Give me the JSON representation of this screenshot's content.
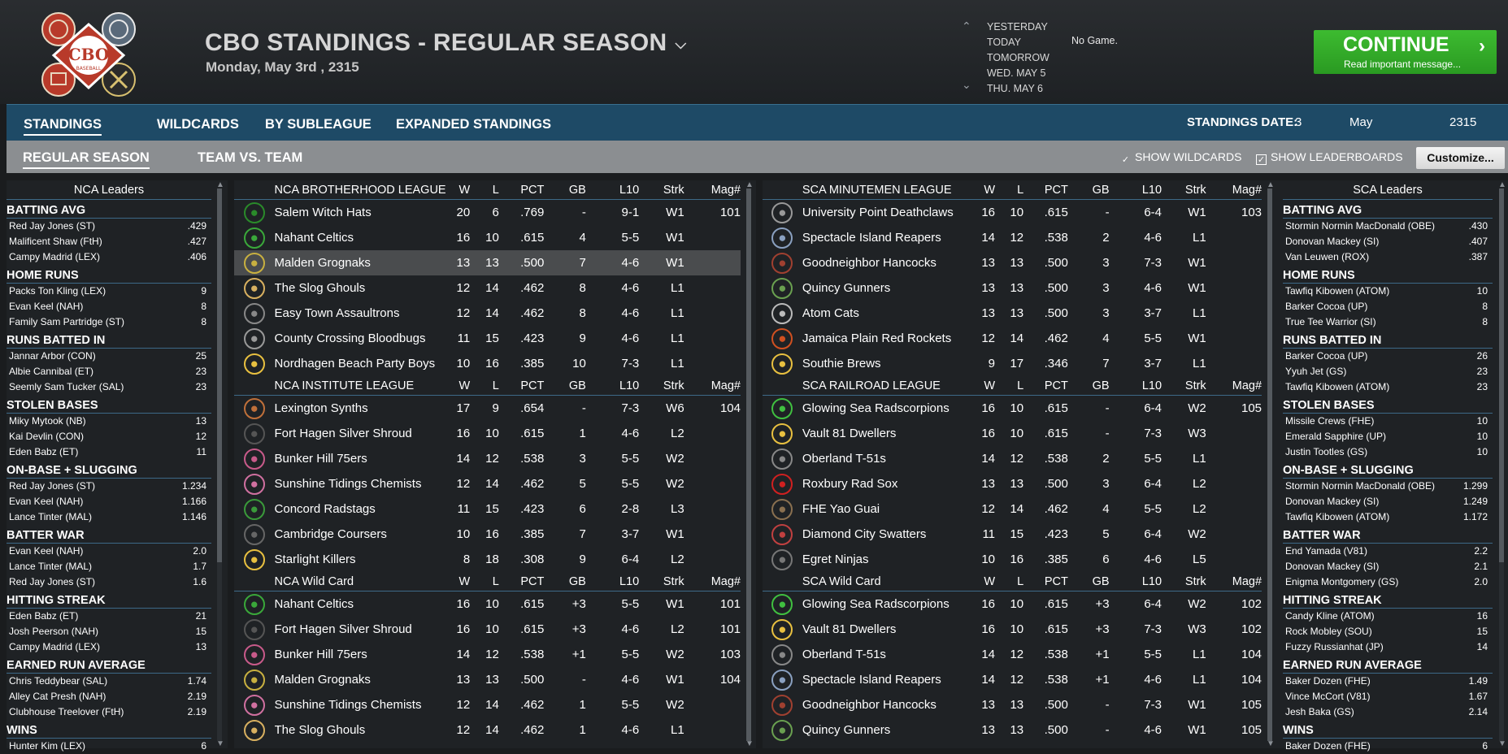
{
  "header": {
    "title": "CBO STANDINGS - REGULAR SEASON",
    "date": "Monday, May 3rd , 2315",
    "days": [
      "YESTERDAY",
      "TODAY",
      "TOMORROW",
      "WED. MAY 5",
      "THU. MAY 6"
    ],
    "no_game": "No Game.",
    "continue_label": "CONTINUE",
    "continue_sub": "Read important message..."
  },
  "logo": {
    "text": "CBO",
    "subtext": "BASEBALL"
  },
  "nav": {
    "tabs": [
      "STANDINGS",
      "WILDCARDS",
      "BY SUBLEAGUE",
      "EXPANDED STANDINGS"
    ],
    "standings_date_label": "STANDINGS DATE:",
    "standings_date": {
      "day": "3",
      "month": "May",
      "year": "2315"
    }
  },
  "subnav": {
    "tabs": [
      "REGULAR SEASON",
      "TEAM VS. TEAM"
    ],
    "show_wildcards": "SHOW WILDCARDS",
    "show_leaderboards": "SHOW LEADERBOARDS",
    "customize": "Customize..."
  },
  "nca_leaders": {
    "title": "NCA Leaders",
    "categories": [
      {
        "name": "BATTING AVG",
        "rows": [
          [
            "Red Jay Jones (ST)",
            ".429"
          ],
          [
            "Malificent Shaw (FtH)",
            ".427"
          ],
          [
            "Campy Madrid (LEX)",
            ".406"
          ]
        ]
      },
      {
        "name": "HOME RUNS",
        "rows": [
          [
            "Packs Ton Kling (LEX)",
            "9"
          ],
          [
            "Evan Keel (NAH)",
            "8"
          ],
          [
            "Family Sam Partridge (ST)",
            "8"
          ]
        ]
      },
      {
        "name": "RUNS BATTED IN",
        "rows": [
          [
            "Jannar Arbor (CON)",
            "25"
          ],
          [
            "Albie Cannibal (ET)",
            "23"
          ],
          [
            "Seemly Sam Tucker (SAL)",
            "23"
          ]
        ]
      },
      {
        "name": "STOLEN BASES",
        "rows": [
          [
            "Miky Mytook (NB)",
            "13"
          ],
          [
            "Kai Devlin (CON)",
            "12"
          ],
          [
            "Eden Babz (ET)",
            "11"
          ]
        ]
      },
      {
        "name": "ON-BASE + SLUGGING",
        "rows": [
          [
            "Red Jay Jones (ST)",
            "1.234"
          ],
          [
            "Evan Keel (NAH)",
            "1.166"
          ],
          [
            "Lance Tinter (MAL)",
            "1.146"
          ]
        ]
      },
      {
        "name": "BATTER WAR",
        "rows": [
          [
            "Evan Keel (NAH)",
            "2.0"
          ],
          [
            "Lance Tinter (MAL)",
            "1.7"
          ],
          [
            "Red Jay Jones (ST)",
            "1.6"
          ]
        ]
      },
      {
        "name": "HITTING STREAK",
        "rows": [
          [
            "Eden Babz (ET)",
            "21"
          ],
          [
            "Josh Peerson (NAH)",
            "15"
          ],
          [
            "Campy Madrid (LEX)",
            "13"
          ]
        ]
      },
      {
        "name": "EARNED RUN AVERAGE",
        "rows": [
          [
            "Chris Teddybear (SAL)",
            "1.74"
          ],
          [
            "Alley Cat Presh (NAH)",
            "2.19"
          ],
          [
            "Clubhouse Treelover (FtH)",
            "2.19"
          ]
        ]
      },
      {
        "name": "WINS",
        "rows": [
          [
            "Hunter Kim (LEX)",
            "6"
          ]
        ]
      }
    ]
  },
  "sca_leaders": {
    "title": "SCA Leaders",
    "categories": [
      {
        "name": "BATTING AVG",
        "rows": [
          [
            "Stormin Normin MacDonald (OBE)",
            ".430"
          ],
          [
            "Donovan Mackey (SI)",
            ".407"
          ],
          [
            "Van Leuwen (ROX)",
            ".387"
          ]
        ]
      },
      {
        "name": "HOME RUNS",
        "rows": [
          [
            "Tawfiq Kibowen (ATOM)",
            "10"
          ],
          [
            "Barker Cocoa (UP)",
            "8"
          ],
          [
            "True Tee Warrior (SI)",
            "8"
          ]
        ]
      },
      {
        "name": "RUNS BATTED IN",
        "rows": [
          [
            "Barker Cocoa (UP)",
            "26"
          ],
          [
            "Yyuh Jet (GS)",
            "23"
          ],
          [
            "Tawfiq Kibowen (ATOM)",
            "23"
          ]
        ]
      },
      {
        "name": "STOLEN BASES",
        "rows": [
          [
            "Missile Crews (FHE)",
            "10"
          ],
          [
            "Emerald Sapphire (UP)",
            "10"
          ],
          [
            "Justin Tootles (GS)",
            "10"
          ]
        ]
      },
      {
        "name": "ON-BASE + SLUGGING",
        "rows": [
          [
            "Stormin Normin MacDonald (OBE)",
            "1.299"
          ],
          [
            "Donovan Mackey (SI)",
            "1.249"
          ],
          [
            "Tawfiq Kibowen (ATOM)",
            "1.172"
          ]
        ]
      },
      {
        "name": "BATTER WAR",
        "rows": [
          [
            "End Yamada (V81)",
            "2.2"
          ],
          [
            "Donovan Mackey (SI)",
            "2.1"
          ],
          [
            "Enigma Montgomery (GS)",
            "2.0"
          ]
        ]
      },
      {
        "name": "HITTING STREAK",
        "rows": [
          [
            "Candy Kline (ATOM)",
            "16"
          ],
          [
            "Rock Mobley (SOU)",
            "15"
          ],
          [
            "Fuzzy Russianhat (JP)",
            "14"
          ]
        ]
      },
      {
        "name": "EARNED RUN AVERAGE",
        "rows": [
          [
            "Baker Dozen (FHE)",
            "1.49"
          ],
          [
            "Vince McCort (V81)",
            "1.67"
          ],
          [
            "Jesh Baka (GS)",
            "2.14"
          ]
        ]
      },
      {
        "name": "WINS",
        "rows": [
          [
            "Baker Dozen (FHE)",
            "6"
          ]
        ]
      }
    ]
  },
  "columns": [
    "W",
    "L",
    "PCT",
    "GB",
    "L10",
    "Strk",
    "Mag#"
  ],
  "nca_tables": [
    {
      "name": "NCA BROTHERHOOD LEAGUE",
      "rows": [
        {
          "team": "Salem Witch Hats",
          "icon": "witch-hat-icon",
          "color": "#2a8a2a",
          "w": "20",
          "l": "6",
          "pct": ".769",
          "gb": "-",
          "l10": "9-1",
          "strk": "W1",
          "mag": "101"
        },
        {
          "team": "Nahant Celtics",
          "icon": "clover-icon",
          "color": "#3aa83a",
          "w": "16",
          "l": "10",
          "pct": ".615",
          "gb": "4",
          "l10": "5-5",
          "strk": "W1",
          "mag": ""
        },
        {
          "team": "Malden Grognaks",
          "icon": "barbarian-icon",
          "color": "#c8b040",
          "w": "13",
          "l": "13",
          "pct": ".500",
          "gb": "7",
          "l10": "4-6",
          "strk": "W1",
          "mag": ""
        },
        {
          "team": "The Slog Ghouls",
          "icon": "ghoul-icon",
          "color": "#d8b060",
          "w": "12",
          "l": "14",
          "pct": ".462",
          "gb": "8",
          "l10": "4-6",
          "strk": "L1",
          "mag": ""
        },
        {
          "team": "Easy Town Assaultrons",
          "icon": "robot-icon",
          "color": "#888",
          "w": "12",
          "l": "14",
          "pct": ".462",
          "gb": "8",
          "l10": "4-6",
          "strk": "L1",
          "mag": ""
        },
        {
          "team": "County Crossing Bloodbugs",
          "icon": "bug-icon",
          "color": "#999",
          "w": "11",
          "l": "15",
          "pct": ".423",
          "gb": "9",
          "l10": "4-6",
          "strk": "L1",
          "mag": ""
        },
        {
          "team": "Nordhagen Beach Party Boys",
          "icon": "vault-boy-icon",
          "color": "#e8c040",
          "w": "10",
          "l": "16",
          "pct": ".385",
          "gb": "10",
          "l10": "7-3",
          "strk": "L1",
          "mag": ""
        }
      ]
    },
    {
      "name": "NCA INSTITUTE LEAGUE",
      "rows": [
        {
          "team": "Lexington Synths",
          "icon": "synth-icon",
          "color": "#c0703a",
          "w": "17",
          "l": "9",
          "pct": ".654",
          "gb": "-",
          "l10": "7-3",
          "strk": "W6",
          "mag": "104"
        },
        {
          "team": "Fort Hagen Silver Shroud",
          "icon": "shroud-icon",
          "color": "#555",
          "w": "16",
          "l": "10",
          "pct": ".615",
          "gb": "1",
          "l10": "4-6",
          "strk": "L2",
          "mag": ""
        },
        {
          "team": "Bunker Hill 75ers",
          "icon": "minuteman-icon",
          "color": "#c85a8a",
          "w": "14",
          "l": "12",
          "pct": ".538",
          "gb": "3",
          "l10": "5-5",
          "strk": "W2",
          "mag": ""
        },
        {
          "team": "Sunshine Tidings Chemists",
          "icon": "chemist-icon",
          "color": "#d070a0",
          "w": "12",
          "l": "14",
          "pct": ".462",
          "gb": "5",
          "l10": "5-5",
          "strk": "W2",
          "mag": ""
        },
        {
          "team": "Concord Radstags",
          "icon": "radstag-icon",
          "color": "#3a9a3a",
          "w": "11",
          "l": "15",
          "pct": ".423",
          "gb": "6",
          "l10": "2-8",
          "strk": "L3",
          "mag": ""
        },
        {
          "team": "Cambridge Coursers",
          "icon": "courser-icon",
          "color": "#666",
          "w": "10",
          "l": "16",
          "pct": ".385",
          "gb": "7",
          "l10": "3-7",
          "strk": "W1",
          "mag": ""
        },
        {
          "team": "Starlight Killers",
          "icon": "killer-icon",
          "color": "#e8c040",
          "w": "8",
          "l": "18",
          "pct": ".308",
          "gb": "9",
          "l10": "6-4",
          "strk": "L2",
          "mag": ""
        }
      ]
    },
    {
      "name": "NCA  Wild Card",
      "rows": [
        {
          "team": "Nahant Celtics",
          "icon": "clover-icon",
          "color": "#3aa83a",
          "w": "16",
          "l": "10",
          "pct": ".615",
          "gb": "+3",
          "l10": "5-5",
          "strk": "W1",
          "mag": "101"
        },
        {
          "team": "Fort Hagen Silver Shroud",
          "icon": "shroud-icon",
          "color": "#555",
          "w": "16",
          "l": "10",
          "pct": ".615",
          "gb": "+3",
          "l10": "4-6",
          "strk": "L2",
          "mag": "101"
        },
        {
          "team": "Bunker Hill 75ers",
          "icon": "minuteman-icon",
          "color": "#c85a8a",
          "w": "14",
          "l": "12",
          "pct": ".538",
          "gb": "+1",
          "l10": "5-5",
          "strk": "W2",
          "mag": "103"
        },
        {
          "team": "Malden Grognaks",
          "icon": "barbarian-icon",
          "color": "#c8b040",
          "w": "13",
          "l": "13",
          "pct": ".500",
          "gb": "-",
          "l10": "4-6",
          "strk": "W1",
          "mag": "104"
        },
        {
          "team": "Sunshine Tidings Chemists",
          "icon": "chemist-icon",
          "color": "#d070a0",
          "w": "12",
          "l": "14",
          "pct": ".462",
          "gb": "1",
          "l10": "5-5",
          "strk": "W2",
          "mag": ""
        },
        {
          "team": "The Slog Ghouls",
          "icon": "ghoul-icon",
          "color": "#d8b060",
          "w": "12",
          "l": "14",
          "pct": ".462",
          "gb": "1",
          "l10": "4-6",
          "strk": "L1",
          "mag": ""
        }
      ]
    }
  ],
  "sca_tables": [
    {
      "name": "SCA MINUTEMEN LEAGUE",
      "rows": [
        {
          "team": "University Point Deathclaws",
          "icon": "deathclaw-icon",
          "color": "#999",
          "w": "16",
          "l": "10",
          "pct": ".615",
          "gb": "-",
          "l10": "6-4",
          "strk": "W1",
          "mag": "103"
        },
        {
          "team": "Spectacle Island Reapers",
          "icon": "reaper-icon",
          "color": "#8aa0c0",
          "w": "14",
          "l": "12",
          "pct": ".538",
          "gb": "2",
          "l10": "4-6",
          "strk": "L1",
          "mag": ""
        },
        {
          "team": "Goodneighbor Hancocks",
          "icon": "hancock-icon",
          "color": "#a04030",
          "w": "13",
          "l": "13",
          "pct": ".500",
          "gb": "3",
          "l10": "7-3",
          "strk": "W1",
          "mag": ""
        },
        {
          "team": "Quincy Gunners",
          "icon": "gunner-icon",
          "color": "#6aa050",
          "w": "13",
          "l": "13",
          "pct": ".500",
          "gb": "3",
          "l10": "4-6",
          "strk": "W1",
          "mag": ""
        },
        {
          "team": "Atom Cats",
          "icon": "cat-icon",
          "color": "#bbb",
          "w": "13",
          "l": "13",
          "pct": ".500",
          "gb": "3",
          "l10": "3-7",
          "strk": "L1",
          "mag": ""
        },
        {
          "team": "Jamaica Plain Red Rockets",
          "icon": "rocket-icon",
          "color": "#d05020",
          "w": "12",
          "l": "14",
          "pct": ".462",
          "gb": "4",
          "l10": "5-5",
          "strk": "W1",
          "mag": ""
        },
        {
          "team": "Southie Brews",
          "icon": "brew-icon",
          "color": "#e8c040",
          "w": "9",
          "l": "17",
          "pct": ".346",
          "gb": "7",
          "l10": "3-7",
          "strk": "L1",
          "mag": ""
        }
      ]
    },
    {
      "name": "SCA RAILROAD LEAGUE",
      "rows": [
        {
          "team": "Glowing Sea Radscorpions",
          "icon": "scorpion-icon",
          "color": "#40c040",
          "w": "16",
          "l": "10",
          "pct": ".615",
          "gb": "-",
          "l10": "6-4",
          "strk": "W2",
          "mag": "105"
        },
        {
          "team": "Vault 81 Dwellers",
          "icon": "vault-81-icon",
          "color": "#e8c040",
          "w": "16",
          "l": "10",
          "pct": ".615",
          "gb": "-",
          "l10": "7-3",
          "strk": "W3",
          "mag": ""
        },
        {
          "team": "Oberland T-51s",
          "icon": "power-armor-icon",
          "color": "#888",
          "w": "14",
          "l": "12",
          "pct": ".538",
          "gb": "2",
          "l10": "5-5",
          "strk": "L1",
          "mag": ""
        },
        {
          "team": "Roxbury Rad Sox",
          "icon": "r-letter-icon",
          "color": "#d02020",
          "w": "13",
          "l": "13",
          "pct": ".500",
          "gb": "3",
          "l10": "6-4",
          "strk": "L2",
          "mag": ""
        },
        {
          "team": "FHE Yao Guai",
          "icon": "fhe-text-icon",
          "color": "#8a7050",
          "w": "12",
          "l": "14",
          "pct": ".462",
          "gb": "4",
          "l10": "5-5",
          "strk": "L2",
          "mag": ""
        },
        {
          "team": "Diamond City Swatters",
          "icon": "swatter-icon",
          "color": "#c04040",
          "w": "11",
          "l": "15",
          "pct": ".423",
          "gb": "5",
          "l10": "6-4",
          "strk": "W2",
          "mag": ""
        },
        {
          "team": "Egret Ninjas",
          "icon": "ninja-icon",
          "color": "#777",
          "w": "10",
          "l": "16",
          "pct": ".385",
          "gb": "6",
          "l10": "4-6",
          "strk": "L5",
          "mag": ""
        }
      ]
    },
    {
      "name": "SCA  Wild Card",
      "rows": [
        {
          "team": "Glowing Sea Radscorpions",
          "icon": "scorpion-icon",
          "color": "#40c040",
          "w": "16",
          "l": "10",
          "pct": ".615",
          "gb": "+3",
          "l10": "6-4",
          "strk": "W2",
          "mag": "102"
        },
        {
          "team": "Vault 81 Dwellers",
          "icon": "vault-81-icon",
          "color": "#e8c040",
          "w": "16",
          "l": "10",
          "pct": ".615",
          "gb": "+3",
          "l10": "7-3",
          "strk": "W3",
          "mag": "102"
        },
        {
          "team": "Oberland T-51s",
          "icon": "power-armor-icon",
          "color": "#888",
          "w": "14",
          "l": "12",
          "pct": ".538",
          "gb": "+1",
          "l10": "5-5",
          "strk": "L1",
          "mag": "104"
        },
        {
          "team": "Spectacle Island Reapers",
          "icon": "reaper-icon",
          "color": "#8aa0c0",
          "w": "14",
          "l": "12",
          "pct": ".538",
          "gb": "+1",
          "l10": "4-6",
          "strk": "L1",
          "mag": "104"
        },
        {
          "team": "Goodneighbor Hancocks",
          "icon": "hancock-icon",
          "color": "#a04030",
          "w": "13",
          "l": "13",
          "pct": ".500",
          "gb": "-",
          "l10": "7-3",
          "strk": "W1",
          "mag": "105"
        },
        {
          "team": "Quincy Gunners",
          "icon": "gunner-icon",
          "color": "#6aa050",
          "w": "13",
          "l": "13",
          "pct": ".500",
          "gb": "-",
          "l10": "4-6",
          "strk": "W1",
          "mag": "105"
        }
      ]
    }
  ],
  "selected_row": "Malden Grognaks",
  "colors": {
    "accent_green": "#3dbb30",
    "nav_blue": "#1e4a66",
    "subnav_gray": "#8b8e91"
  }
}
